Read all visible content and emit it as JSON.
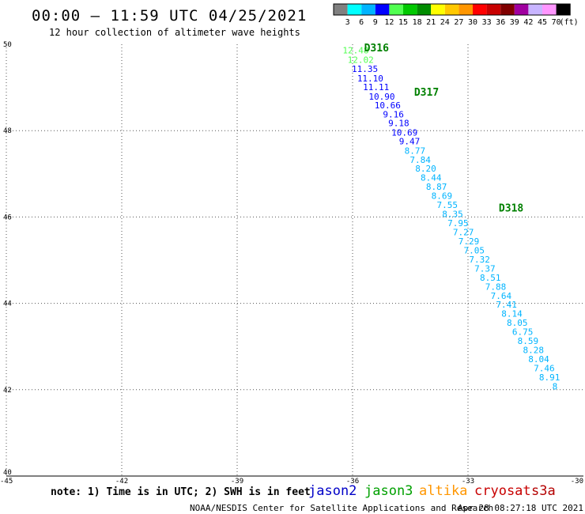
{
  "header": {
    "title": "00:00 – 11:59 UTC 04/25/2021",
    "subtitle": "12 hour collection of altimeter wave heights"
  },
  "colorbar": {
    "colors": [
      "#808080",
      "#00ffff",
      "#00b4ff",
      "#0000ff",
      "#50ff50",
      "#00c800",
      "#008c00",
      "#ffff00",
      "#ffc800",
      "#ff9600",
      "#ff0000",
      "#c80000",
      "#800000",
      "#a000a0",
      "#c8b4ff",
      "#ff96ff",
      "#000000"
    ],
    "labels": [
      "3",
      "6",
      "9",
      "12",
      "15",
      "18",
      "21",
      "24",
      "27",
      "30",
      "33",
      "36",
      "39",
      "42",
      "45",
      "70"
    ],
    "unit": "(ft)"
  },
  "note": "note: 1) Time is in UTC; 2) SWH is in feet",
  "satellites": [
    {
      "name": "jason2",
      "color": "#0000c8"
    },
    {
      "name": "jason3",
      "color": "#00a000"
    },
    {
      "name": "altika",
      "color": "#ff9600"
    },
    {
      "name": "cryosat",
      "color": "#c80000"
    },
    {
      "name": "s3a",
      "color": "#b40000"
    }
  ],
  "footer": {
    "source": "NOAA/NESDIS Center for Satellite Applications and Research",
    "timestamp": "Apr 28 08:27:18 UTC 2021"
  },
  "chart_data": {
    "type": "scatter",
    "title": "00:00 – 11:59 UTC 04/25/2021",
    "subtitle": "12 hour collection of altimeter wave heights",
    "xlim": [
      -45,
      -30
    ],
    "ylim": [
      40,
      50
    ],
    "xticks": [
      -45,
      -42,
      -39,
      -36,
      -33,
      -30
    ],
    "xtick_labels": [
      "-45",
      "-42",
      "-39",
      "-36",
      "-33",
      "-30"
    ],
    "yticks": [
      40,
      42,
      44,
      46,
      48,
      50
    ],
    "ytick_labels": [
      "40",
      "42",
      "44",
      "46",
      "48",
      "50"
    ],
    "grid": true,
    "pass_labels": [
      {
        "text": "D316",
        "x": -35.7,
        "y": 49.93
      },
      {
        "text": "D317",
        "x": -34.4,
        "y": 48.9
      },
      {
        "text": "D318",
        "x": -32.2,
        "y": 46.22
      }
    ],
    "points": [
      {
        "x": -35.92,
        "y": 49.86,
        "v": "12.48",
        "color": "#50ff50"
      },
      {
        "x": -35.79,
        "y": 49.64,
        "v": "12.02",
        "color": "#50ff50"
      },
      {
        "x": -35.68,
        "y": 49.43,
        "v": "11.35",
        "color": "#0000ff"
      },
      {
        "x": -35.54,
        "y": 49.21,
        "v": "11.10",
        "color": "#0000ff"
      },
      {
        "x": -35.39,
        "y": 49.01,
        "v": "11.11",
        "color": "#0000ff"
      },
      {
        "x": -35.24,
        "y": 48.79,
        "v": "10.90",
        "color": "#0000ff"
      },
      {
        "x": -35.09,
        "y": 48.59,
        "v": "10.66",
        "color": "#0000ff"
      },
      {
        "x": -34.94,
        "y": 48.38,
        "v": "9.16",
        "color": "#0000ff"
      },
      {
        "x": -34.8,
        "y": 48.18,
        "v": "9.18",
        "color": "#0000ff"
      },
      {
        "x": -34.65,
        "y": 47.96,
        "v": "10.69",
        "color": "#0000ff"
      },
      {
        "x": -34.52,
        "y": 47.76,
        "v": "9.47",
        "color": "#0000ff"
      },
      {
        "x": -34.38,
        "y": 47.54,
        "v": "8.77",
        "color": "#00b4ff"
      },
      {
        "x": -34.24,
        "y": 47.33,
        "v": "7.84",
        "color": "#00b4ff"
      },
      {
        "x": -34.1,
        "y": 47.12,
        "v": "8.20",
        "color": "#00b4ff"
      },
      {
        "x": -33.96,
        "y": 46.91,
        "v": "8.44",
        "color": "#00b4ff"
      },
      {
        "x": -33.82,
        "y": 46.7,
        "v": "8.87",
        "color": "#00b4ff"
      },
      {
        "x": -33.68,
        "y": 46.49,
        "v": "8.69",
        "color": "#00b4ff"
      },
      {
        "x": -33.54,
        "y": 46.28,
        "v": "7.55",
        "color": "#00b4ff"
      },
      {
        "x": -33.4,
        "y": 46.07,
        "v": "8.35",
        "color": "#00b4ff"
      },
      {
        "x": -33.26,
        "y": 45.86,
        "v": "7.95",
        "color": "#00b4ff"
      },
      {
        "x": -33.12,
        "y": 45.65,
        "v": "7.27",
        "color": "#00b4ff"
      },
      {
        "x": -32.98,
        "y": 45.44,
        "v": "7.29",
        "color": "#00b4ff"
      },
      {
        "x": -32.84,
        "y": 45.23,
        "v": "7.05",
        "color": "#00b4ff"
      },
      {
        "x": -32.7,
        "y": 45.02,
        "v": "7.32",
        "color": "#00b4ff"
      },
      {
        "x": -32.56,
        "y": 44.81,
        "v": "7.37",
        "color": "#00b4ff"
      },
      {
        "x": -32.42,
        "y": 44.6,
        "v": "8.51",
        "color": "#00b4ff"
      },
      {
        "x": -32.28,
        "y": 44.39,
        "v": "7.88",
        "color": "#00b4ff"
      },
      {
        "x": -32.14,
        "y": 44.18,
        "v": "7.64",
        "color": "#00b4ff"
      },
      {
        "x": -32.0,
        "y": 43.97,
        "v": "7.41",
        "color": "#00b4ff"
      },
      {
        "x": -31.86,
        "y": 43.76,
        "v": "8.14",
        "color": "#00b4ff"
      },
      {
        "x": -31.72,
        "y": 43.55,
        "v": "8.05",
        "color": "#00b4ff"
      },
      {
        "x": -31.58,
        "y": 43.34,
        "v": "6.75",
        "color": "#00b4ff"
      },
      {
        "x": -31.44,
        "y": 43.13,
        "v": "8.59",
        "color": "#00b4ff"
      },
      {
        "x": -31.3,
        "y": 42.92,
        "v": "8.28",
        "color": "#00b4ff"
      },
      {
        "x": -31.16,
        "y": 42.71,
        "v": "8.04",
        "color": "#00b4ff"
      },
      {
        "x": -31.02,
        "y": 42.5,
        "v": "7.46",
        "color": "#00b4ff"
      },
      {
        "x": -30.88,
        "y": 42.29,
        "v": "8.91",
        "color": "#00b4ff"
      },
      {
        "x": -30.74,
        "y": 42.08,
        "v": "8",
        "color": "#00b4ff"
      }
    ]
  }
}
